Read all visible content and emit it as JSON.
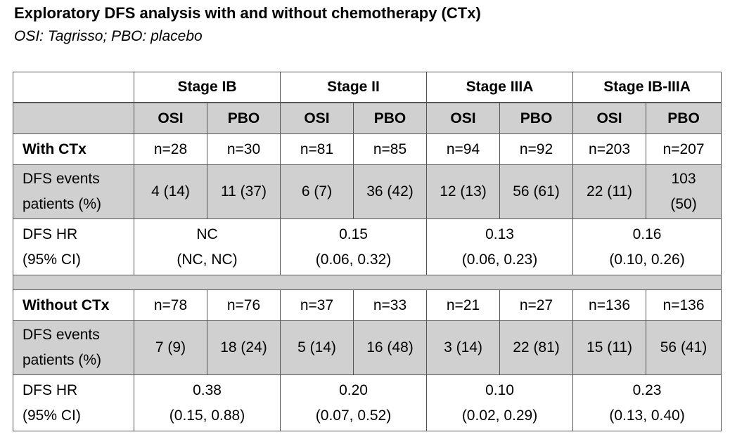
{
  "title": "Exploratory DFS analysis with and without chemotherapy (CTx)",
  "subtitle": "OSI: Tagrisso; PBO: placebo",
  "stages": [
    "Stage IB",
    "Stage II",
    "Stage IIIA",
    "Stage IB-IIIA"
  ],
  "arms": [
    "OSI",
    "PBO"
  ],
  "with_ctx": {
    "label": "With CTx",
    "n": [
      "n=28",
      "n=30",
      "n=81",
      "n=85",
      "n=94",
      "n=92",
      "n=203",
      "n=207"
    ],
    "events_label": [
      "DFS events",
      "patients (%)"
    ],
    "events": [
      [
        "4 (14)"
      ],
      [
        "11 (37)"
      ],
      [
        "6 (7)"
      ],
      [
        "36 (42)"
      ],
      [
        "12 (13)"
      ],
      [
        "56 (61)"
      ],
      [
        "22 (11)"
      ],
      [
        "103",
        "(50)"
      ]
    ],
    "hr_label": [
      "DFS HR",
      "(95% CI)"
    ],
    "hr": [
      [
        "NC",
        "(NC, NC)"
      ],
      [
        "0.15",
        "(0.06, 0.32)"
      ],
      [
        "0.13",
        "(0.06, 0.23)"
      ],
      [
        "0.16",
        "(0.10, 0.26)"
      ]
    ]
  },
  "without_ctx": {
    "label": "Without CTx",
    "n": [
      "n=78",
      "n=76",
      "n=37",
      "n=33",
      "n=21",
      "n=27",
      "n=136",
      "n=136"
    ],
    "events_label": [
      "DFS events",
      "patients (%)"
    ],
    "events": [
      [
        "7 (9)"
      ],
      [
        "18 (24)"
      ],
      [
        "5 (14)"
      ],
      [
        "16 (48)"
      ],
      [
        "3 (14)"
      ],
      [
        "22 (81)"
      ],
      [
        "15 (11)"
      ],
      [
        "56 (41)"
      ]
    ],
    "hr_label": [
      "DFS HR",
      "(95% CI)"
    ],
    "hr": [
      [
        "0.38",
        "(0.15, 0.88)"
      ],
      [
        "0.20",
        "(0.07, 0.52)"
      ],
      [
        "0.10",
        "(0.02, 0.29)"
      ],
      [
        "0.23",
        "(0.13, 0.40)"
      ]
    ]
  }
}
